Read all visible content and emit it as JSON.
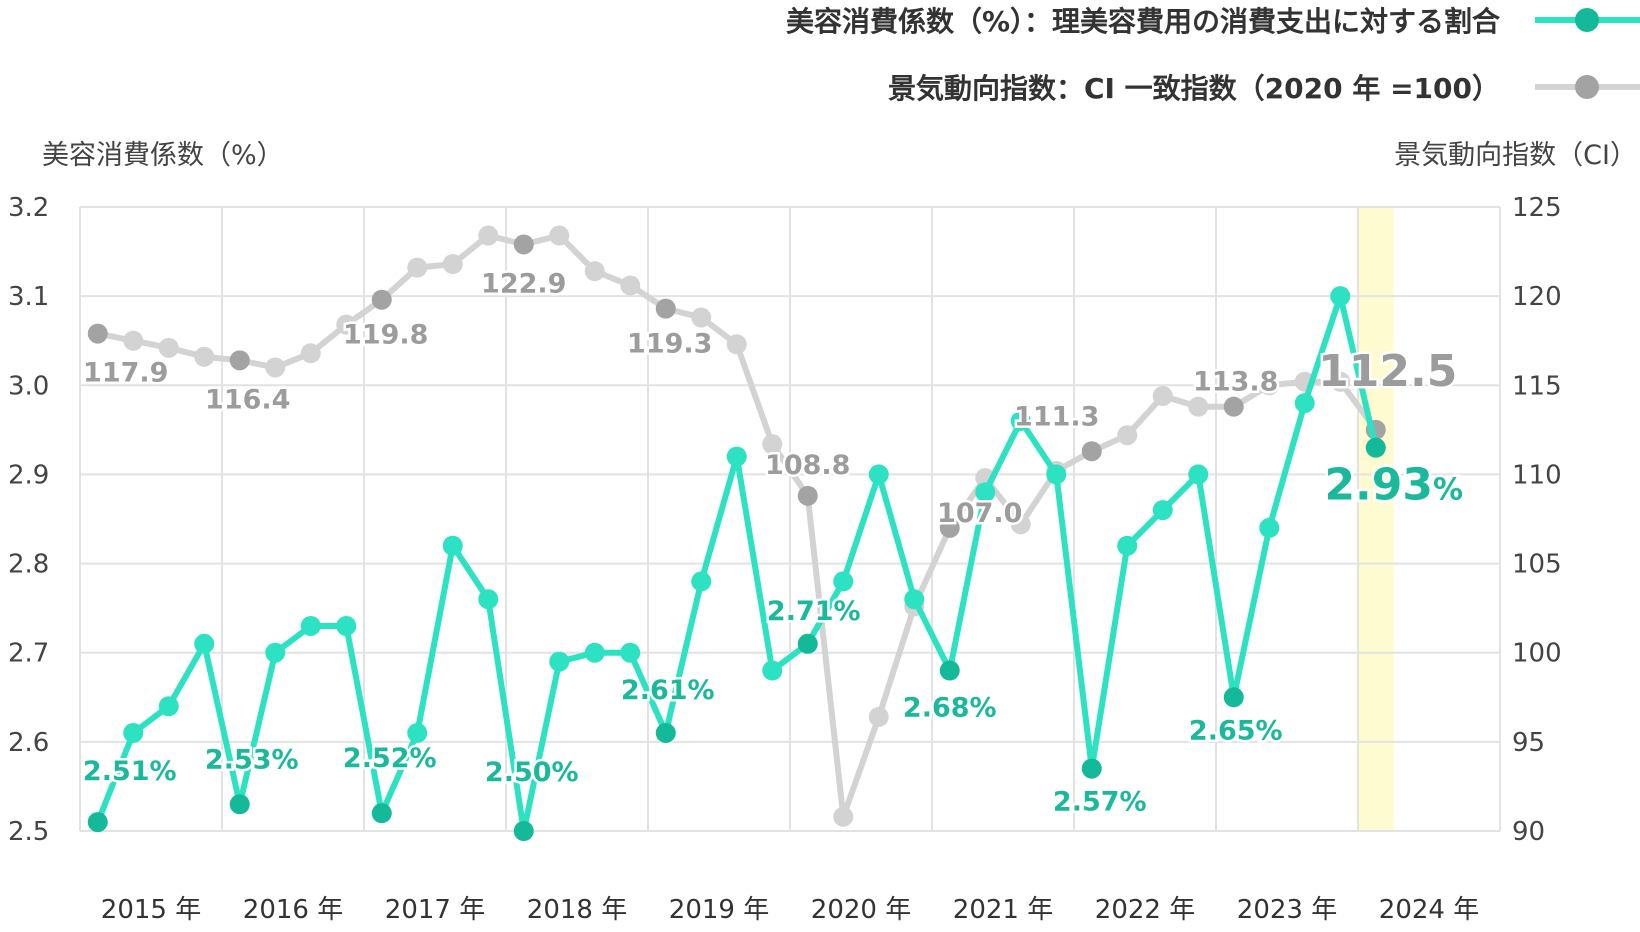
{
  "chart_data": {
    "type": "line",
    "legend": {
      "placement": "top-right",
      "items": [
        {
          "label": "美容消費係数（%）：理美容費用の消費支出に対する割合",
          "color": "#2de2c2",
          "marker": "#13b998"
        },
        {
          "label": "景気動向指数：CI 一致指数（2020 年 =100）",
          "color": "#d3d3d3",
          "marker": "#a3a3a3"
        }
      ]
    },
    "y_left": {
      "label": "美容消費係数（%）",
      "min": 2.5,
      "max": 3.2,
      "ticks": [
        "2.5",
        "2.6",
        "2.7",
        "2.8",
        "2.9",
        "3.0",
        "3.1",
        "3.2"
      ]
    },
    "y_right": {
      "label": "景気動向指数（CI）",
      "min": 90,
      "max": 125,
      "ticks": [
        "90",
        "95",
        "100",
        "105",
        "110",
        "115",
        "120",
        "125"
      ]
    },
    "x_axis": {
      "min": 2015,
      "max": 2025,
      "labels": [
        "2015 年",
        "2016 年",
        "2017 年",
        "2018 年",
        "2019 年",
        "2020 年",
        "2021 年",
        "2022 年",
        "2023 年",
        "2024 年"
      ]
    },
    "highlight_range": [
      2024,
      2024.25
    ],
    "grid": true,
    "series": [
      {
        "name": "美容消費係数（%）：理美容費用の消費支出に対する割合",
        "axis": "left",
        "color": "#2de2c2",
        "x": [
          2015.125,
          2015.375,
          2015.625,
          2015.875,
          2016.125,
          2016.375,
          2016.625,
          2016.875,
          2017.125,
          2017.375,
          2017.625,
          2017.875,
          2018.125,
          2018.375,
          2018.625,
          2018.875,
          2019.125,
          2019.375,
          2019.625,
          2019.875,
          2020.125,
          2020.375,
          2020.625,
          2020.875,
          2021.125,
          2021.375,
          2021.625,
          2021.875,
          2022.125,
          2022.375,
          2022.625,
          2022.875,
          2023.125,
          2023.375,
          2023.625,
          2023.875,
          2024.125
        ],
        "values": [
          2.51,
          2.61,
          2.64,
          2.71,
          2.53,
          2.7,
          2.73,
          2.73,
          2.52,
          2.61,
          2.82,
          2.76,
          2.5,
          2.69,
          2.7,
          2.7,
          2.61,
          2.78,
          2.92,
          2.68,
          2.71,
          2.78,
          2.9,
          2.76,
          2.68,
          2.88,
          2.96,
          2.9,
          2.57,
          2.82,
          2.86,
          2.9,
          2.65,
          2.84,
          2.98,
          3.1,
          2.93
        ]
      },
      {
        "name": "景気動向指数：CI 一致指数（2020 年 =100）",
        "axis": "right",
        "color": "#d3d3d3",
        "x": [
          2015.125,
          2015.375,
          2015.625,
          2015.875,
          2016.125,
          2016.375,
          2016.625,
          2016.875,
          2017.125,
          2017.375,
          2017.625,
          2017.875,
          2018.125,
          2018.375,
          2018.625,
          2018.875,
          2019.125,
          2019.375,
          2019.625,
          2019.875,
          2020.125,
          2020.375,
          2020.625,
          2020.875,
          2021.125,
          2021.375,
          2021.625,
          2021.875,
          2022.125,
          2022.375,
          2022.625,
          2022.875,
          2023.125,
          2023.375,
          2023.625,
          2023.875,
          2024.125
        ],
        "values": [
          117.9,
          117.5,
          117.1,
          116.6,
          116.4,
          116.0,
          116.8,
          118.4,
          119.8,
          121.6,
          121.8,
          123.4,
          122.9,
          123.4,
          121.4,
          120.6,
          119.3,
          118.8,
          117.3,
          111.7,
          108.8,
          90.8,
          96.4,
          102.6,
          107.0,
          109.8,
          107.2,
          110.2,
          111.3,
          112.2,
          114.4,
          113.8,
          113.8,
          115.0,
          115.2,
          115.2,
          112.5
        ]
      }
    ],
    "annotations": {
      "beauty": [
        {
          "index": 0,
          "text": "2.51%"
        },
        {
          "index": 4,
          "text": "2.53%"
        },
        {
          "index": 8,
          "text": "2.52%"
        },
        {
          "index": 12,
          "text": "2.50%"
        },
        {
          "index": 16,
          "text": "2.61%"
        },
        {
          "index": 20,
          "text": "2.71%"
        },
        {
          "index": 24,
          "text": "2.68%"
        },
        {
          "index": 28,
          "text": "2.57%"
        },
        {
          "index": 32,
          "text": "2.65%"
        },
        {
          "index": 36,
          "value_text": "2.93",
          "unit_text": "%"
        }
      ],
      "ci": [
        {
          "index": 0,
          "text": "117.9"
        },
        {
          "index": 4,
          "text": "116.4"
        },
        {
          "index": 8,
          "text": "119.8"
        },
        {
          "index": 12,
          "text": "122.9"
        },
        {
          "index": 16,
          "text": "119.3"
        },
        {
          "index": 20,
          "text": "108.8"
        },
        {
          "index": 24,
          "text": "107.0"
        },
        {
          "index": 28,
          "text": "111.3"
        },
        {
          "index": 32,
          "text": "113.8"
        },
        {
          "index": 36,
          "text": "112.5"
        }
      ]
    }
  }
}
